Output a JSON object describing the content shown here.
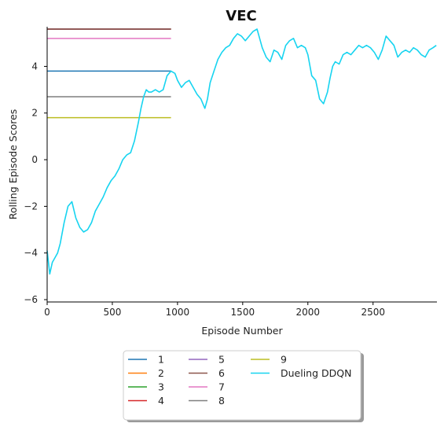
{
  "chart_data": {
    "type": "line",
    "title": "VEC",
    "xlabel": "Episode Number",
    "ylabel": "Rolling Episode Scores",
    "xlim": [
      0,
      2990
    ],
    "ylim": [
      -6.1,
      5.7
    ],
    "xticks": [
      0,
      500,
      1000,
      1500,
      2000,
      2500
    ],
    "yticks": [
      -6,
      -4,
      -2,
      0,
      2,
      4
    ],
    "grid": false,
    "legend_position": "bottom-center",
    "legend_columns": 3,
    "baselines": [
      {
        "name": "1",
        "value": 3.8,
        "x_range": [
          0,
          950
        ],
        "color": "#1f77b4"
      },
      {
        "name": "2",
        "value": 5.6,
        "x_range": [
          0,
          950
        ],
        "color": "#ff7f0e"
      },
      {
        "name": "3",
        "value": 5.6,
        "x_range": [
          0,
          950
        ],
        "color": "#2ca02c"
      },
      {
        "name": "4",
        "value": 5.6,
        "x_range": [
          0,
          950
        ],
        "color": "#d62728"
      },
      {
        "name": "5",
        "value": 5.6,
        "x_range": [
          0,
          950
        ],
        "color": "#9467bd"
      },
      {
        "name": "6",
        "value": 5.6,
        "x_range": [
          0,
          950
        ],
        "color": "#8c564b"
      },
      {
        "name": "7",
        "value": 5.2,
        "x_range": [
          0,
          950
        ],
        "color": "#e377c2"
      },
      {
        "name": "8",
        "value": 2.7,
        "x_range": [
          0,
          950
        ],
        "color": "#7f7f7f"
      },
      {
        "name": "9",
        "value": 1.8,
        "x_range": [
          0,
          950
        ],
        "color": "#bcbd22"
      }
    ],
    "series": [
      {
        "name": "Dueling DDQN",
        "color": "#17d4f0",
        "x": [
          0,
          20,
          40,
          60,
          80,
          100,
          130,
          160,
          190,
          220,
          250,
          280,
          310,
          340,
          370,
          400,
          430,
          460,
          490,
          520,
          550,
          580,
          610,
          640,
          670,
          700,
          720,
          740,
          760,
          780,
          800,
          830,
          860,
          890,
          920,
          950,
          980,
          1000,
          1030,
          1060,
          1090,
          1120,
          1150,
          1180,
          1210,
          1230,
          1250,
          1280,
          1310,
          1340,
          1370,
          1400,
          1430,
          1460,
          1490,
          1520,
          1550,
          1580,
          1610,
          1630,
          1650,
          1680,
          1710,
          1740,
          1770,
          1800,
          1830,
          1860,
          1890,
          1920,
          1950,
          1980,
          2000,
          2030,
          2060,
          2090,
          2120,
          2150,
          2170,
          2190,
          2210,
          2240,
          2270,
          2300,
          2330,
          2360,
          2390,
          2420,
          2450,
          2480,
          2510,
          2540,
          2570,
          2600,
          2630,
          2660,
          2690,
          2720,
          2750,
          2780,
          2810,
          2840,
          2870,
          2900,
          2930,
          2960,
          2985
        ],
        "y": [
          -3.9,
          -4.9,
          -4.4,
          -4.2,
          -4.0,
          -3.6,
          -2.7,
          -2.0,
          -1.8,
          -2.5,
          -2.9,
          -3.1,
          -3.0,
          -2.7,
          -2.2,
          -1.9,
          -1.6,
          -1.2,
          -0.9,
          -0.7,
          -0.4,
          0.0,
          0.2,
          0.3,
          0.8,
          1.6,
          2.2,
          2.7,
          3.0,
          2.9,
          2.9,
          3.0,
          2.9,
          3.0,
          3.6,
          3.8,
          3.7,
          3.4,
          3.1,
          3.3,
          3.4,
          3.1,
          2.8,
          2.6,
          2.2,
          2.6,
          3.3,
          3.8,
          4.3,
          4.6,
          4.8,
          4.9,
          5.2,
          5.4,
          5.3,
          5.1,
          5.3,
          5.5,
          5.6,
          5.2,
          4.8,
          4.4,
          4.2,
          4.7,
          4.6,
          4.3,
          4.9,
          5.1,
          5.2,
          4.8,
          4.9,
          4.8,
          4.5,
          3.6,
          3.4,
          2.6,
          2.4,
          2.9,
          3.5,
          4.0,
          4.2,
          4.1,
          4.5,
          4.6,
          4.5,
          4.7,
          4.9,
          4.8,
          4.9,
          4.8,
          4.6,
          4.3,
          4.7,
          5.3,
          5.1,
          4.9,
          4.4,
          4.6,
          4.7,
          4.6,
          4.8,
          4.7,
          4.5,
          4.4,
          4.7,
          4.8,
          4.9
        ]
      }
    ],
    "legend": [
      "1",
      "2",
      "3",
      "4",
      "5",
      "6",
      "7",
      "8",
      "9",
      "Dueling DDQN"
    ]
  }
}
